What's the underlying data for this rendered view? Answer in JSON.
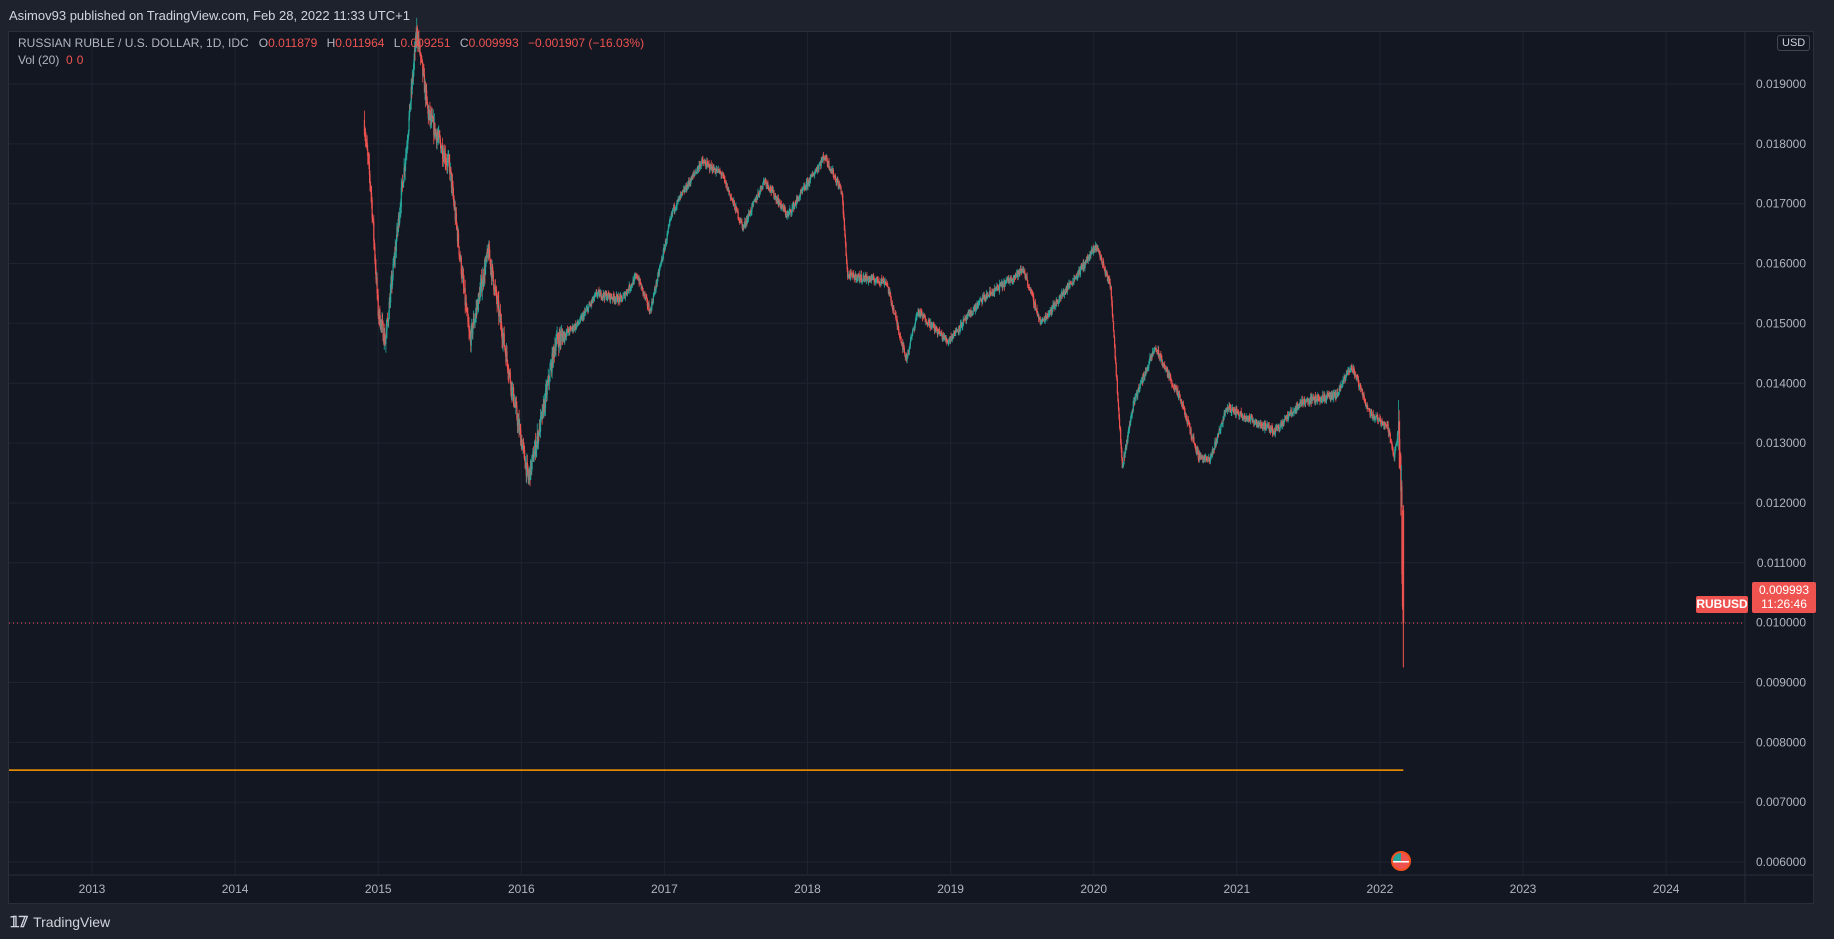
{
  "header": {
    "published": "Asimov93 published on TradingView.com, Feb 28, 2022 11:33 UTC+1"
  },
  "legend": {
    "symbol": "RUSSIAN RUBLE / U.S. DOLLAR, 1D, IDC",
    "o_label": "O",
    "o": "0.011879",
    "h_label": "H",
    "h": "0.011964",
    "l_label": "L",
    "l": "0.009251",
    "c_label": "C",
    "c": "0.009993",
    "change": "−0.001907 (−16.03%)",
    "vol_label": "Vol (20)",
    "vol_a": "0",
    "vol_b": "0"
  },
  "currency": "USD",
  "price_tag": {
    "symbol": "RUBUSD",
    "price": "0.009993",
    "countdown": "11:26:46"
  },
  "footer": {
    "brand": "TradingView"
  },
  "colors": {
    "bg": "#131722",
    "grid": "#1f2330",
    "up": "#26a69a",
    "down": "#ef5350",
    "hline": "#ff9800",
    "text": "#b2b5be"
  },
  "chart_data": {
    "type": "candlestick",
    "title": "RUSSIAN RUBLE / U.S. DOLLAR, 1D, IDC",
    "x_ticks": [
      "2013",
      "2014",
      "2015",
      "2016",
      "2017",
      "2018",
      "2019",
      "2020",
      "2021",
      "2022",
      "2023",
      "2024"
    ],
    "y_ticks": [
      "0.019000",
      "0.018000",
      "0.017000",
      "0.016000",
      "0.015000",
      "0.014000",
      "0.013000",
      "0.012000",
      "0.011000",
      "0.010000",
      "0.009000",
      "0.008000",
      "0.007000",
      "0.006000"
    ],
    "y_tick_values": [
      0.019,
      0.018,
      0.017,
      0.016,
      0.015,
      0.014,
      0.013,
      0.012,
      0.011,
      0.01,
      0.009,
      0.008,
      0.007,
      0.006
    ],
    "xlim": [
      2012.35,
      2024.6
    ],
    "ylim": [
      0.00575,
      0.01975
    ],
    "grid": true,
    "last_price": 0.009993,
    "horizontal_line": 0.007535,
    "price_path": [
      [
        2014.9,
        0.0184
      ],
      [
        2014.95,
        0.0172
      ],
      [
        2015.0,
        0.0152
      ],
      [
        2015.05,
        0.0147
      ],
      [
        2015.1,
        0.0158
      ],
      [
        2015.2,
        0.018
      ],
      [
        2015.27,
        0.0199
      ],
      [
        2015.35,
        0.0185
      ],
      [
        2015.5,
        0.0176
      ],
      [
        2015.64,
        0.0147
      ],
      [
        2015.77,
        0.0162
      ],
      [
        2015.95,
        0.0137
      ],
      [
        2016.05,
        0.0124
      ],
      [
        2016.15,
        0.0135
      ],
      [
        2016.24,
        0.0147
      ],
      [
        2016.4,
        0.015
      ],
      [
        2016.53,
        0.0155
      ],
      [
        2016.7,
        0.0154
      ],
      [
        2016.81,
        0.0158
      ],
      [
        2016.9,
        0.0152
      ],
      [
        2017.06,
        0.0169
      ],
      [
        2017.26,
        0.0177
      ],
      [
        2017.4,
        0.0175
      ],
      [
        2017.55,
        0.0166
      ],
      [
        2017.7,
        0.0174
      ],
      [
        2017.86,
        0.0168
      ],
      [
        2018.12,
        0.0178
      ],
      [
        2018.24,
        0.0172
      ],
      [
        2018.28,
        0.0158
      ],
      [
        2018.55,
        0.0157
      ],
      [
        2018.69,
        0.0144
      ],
      [
        2018.77,
        0.0152
      ],
      [
        2018.98,
        0.0147
      ],
      [
        2019.22,
        0.0154
      ],
      [
        2019.51,
        0.0159
      ],
      [
        2019.63,
        0.015
      ],
      [
        2019.88,
        0.0158
      ],
      [
        2020.02,
        0.0163
      ],
      [
        2020.12,
        0.0156
      ],
      [
        2020.2,
        0.0126
      ],
      [
        2020.28,
        0.0137
      ],
      [
        2020.43,
        0.0146
      ],
      [
        2020.61,
        0.0137
      ],
      [
        2020.73,
        0.0128
      ],
      [
        2020.81,
        0.0127
      ],
      [
        2020.93,
        0.0136
      ],
      [
        2021.26,
        0.0132
      ],
      [
        2021.46,
        0.0137
      ],
      [
        2021.7,
        0.0138
      ],
      [
        2021.8,
        0.0143
      ],
      [
        2021.93,
        0.0135
      ],
      [
        2022.05,
        0.0133
      ],
      [
        2022.1,
        0.0128
      ],
      [
        2022.13,
        0.0132
      ],
      [
        2022.15,
        0.0119
      ],
      [
        2022.16,
        0.01
      ]
    ]
  }
}
